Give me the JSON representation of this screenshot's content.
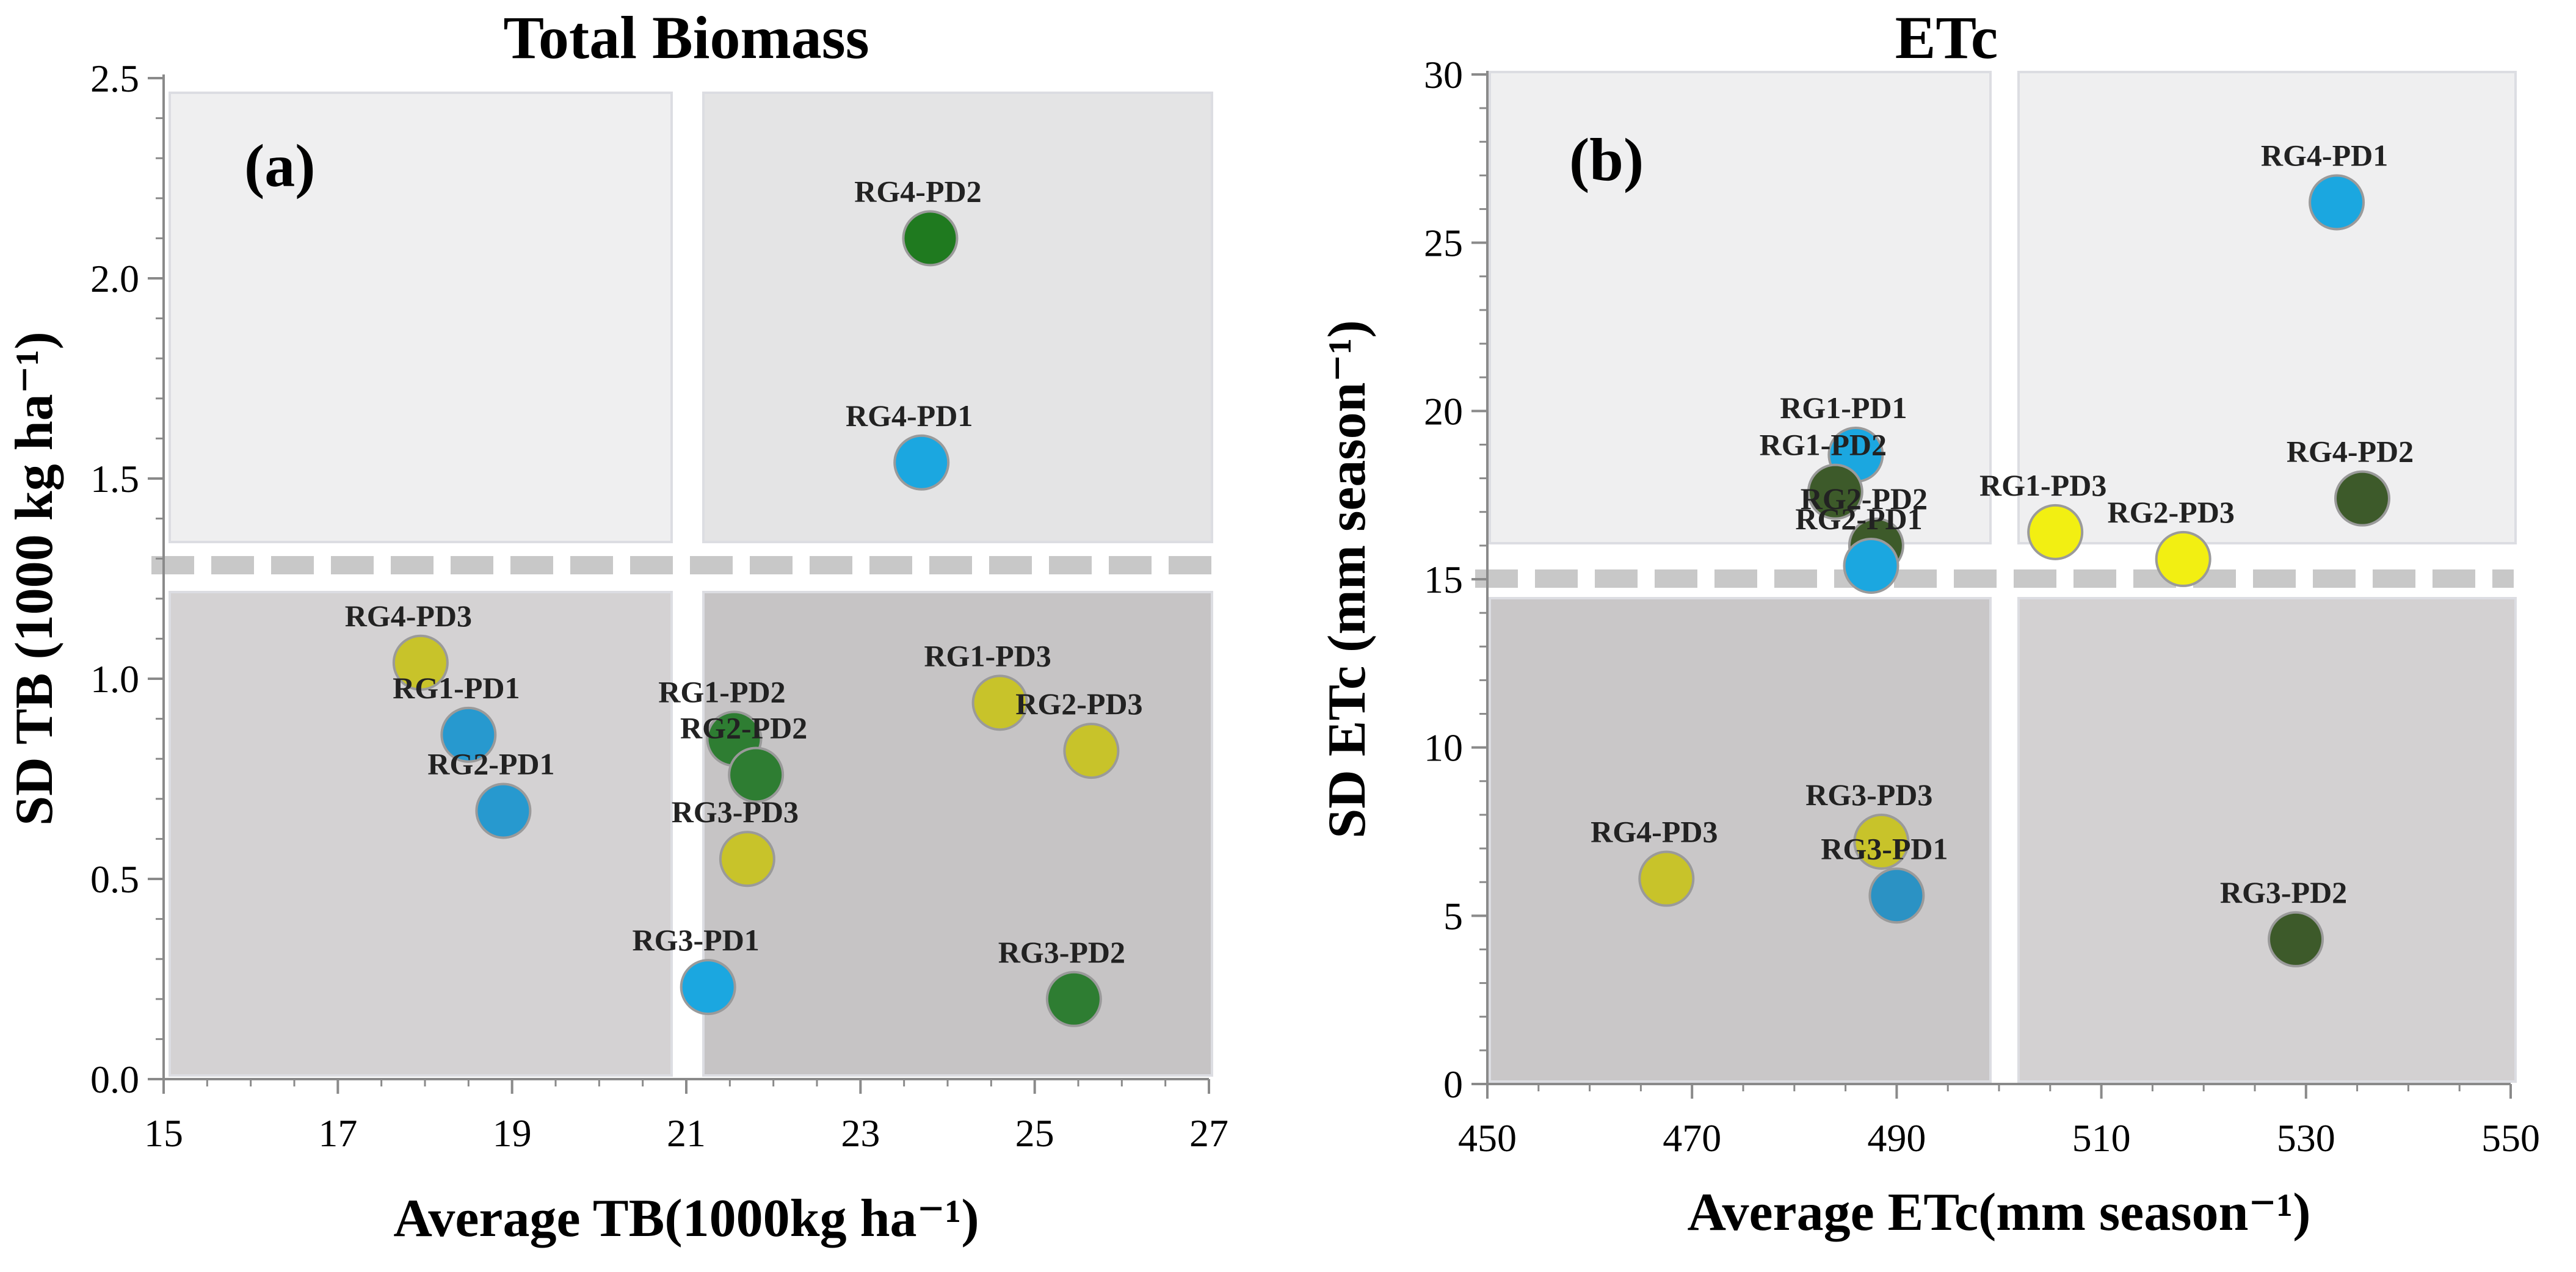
{
  "chart_data": [
    {
      "type": "scatter",
      "panel": "(a)",
      "title": "Total Biomass",
      "xlabel": "Average TB(1000kg ha⁻¹)",
      "ylabel": "SD TB (1000 kg ha⁻¹)",
      "xlim": [
        15,
        27
      ],
      "ylim": [
        0.0,
        2.5
      ],
      "xticks": [
        "15",
        "17",
        "19",
        "21",
        "23",
        "25",
        "27"
      ],
      "yticks": [
        "0.0",
        "0.5",
        "1.0",
        "1.5",
        "2.0",
        "2.5"
      ],
      "threshold_x": 21,
      "threshold_y": 1.28,
      "points": [
        {
          "label": "RG4-PD2",
          "x": 23.8,
          "y": 2.1,
          "color": "#1f7a1f"
        },
        {
          "label": "RG4-PD1",
          "x": 23.7,
          "y": 1.54,
          "color": "#1ba7e0"
        },
        {
          "label": "RG4-PD3",
          "x": 17.95,
          "y": 1.04,
          "color": "#c8c32a"
        },
        {
          "label": "RG1-PD1",
          "x": 18.5,
          "y": 0.86,
          "color": "#2799cf"
        },
        {
          "label": "RG2-PD1",
          "x": 18.9,
          "y": 0.67,
          "color": "#2799cf"
        },
        {
          "label": "RG1-PD2",
          "x": 21.55,
          "y": 0.85,
          "color": "#2e7d32"
        },
        {
          "label": "RG2-PD2",
          "x": 21.8,
          "y": 0.76,
          "color": "#2e7d32"
        },
        {
          "label": "RG3-PD3",
          "x": 21.7,
          "y": 0.55,
          "color": "#c8c32a"
        },
        {
          "label": "RG1-PD3",
          "x": 24.6,
          "y": 0.94,
          "color": "#c8c32a"
        },
        {
          "label": "RG2-PD3",
          "x": 25.65,
          "y": 0.82,
          "color": "#c8c32a"
        },
        {
          "label": "RG3-PD1",
          "x": 21.25,
          "y": 0.23,
          "color": "#1ba7e0"
        },
        {
          "label": "RG3-PD2",
          "x": 25.45,
          "y": 0.2,
          "color": "#2e7d32"
        }
      ]
    },
    {
      "type": "scatter",
      "panel": "(b)",
      "title": "ETc",
      "xlabel": "Average ETc(mm season⁻¹)",
      "ylabel": "SD ETc (mm season⁻¹)",
      "xlim": [
        450,
        550
      ],
      "ylim": [
        0,
        30
      ],
      "xticks": [
        "450",
        "470",
        "490",
        "510",
        "530",
        "550"
      ],
      "yticks": [
        "0",
        "5",
        "10",
        "15",
        "20",
        "25",
        "30"
      ],
      "threshold_x": 500,
      "threshold_y": 15,
      "points": [
        {
          "label": "RG4-PD1",
          "x": 533,
          "y": 26.2,
          "color": "#1ba7e0"
        },
        {
          "label": "RG1-PD1",
          "x": 486,
          "y": 18.7,
          "color": "#1ba7e0"
        },
        {
          "label": "RG1-PD2",
          "x": 484,
          "y": 17.6,
          "color": "#3d5a2a"
        },
        {
          "label": "RG2-PD2",
          "x": 488,
          "y": 16.0,
          "color": "#3d5a2a"
        },
        {
          "label": "RG2-PD1",
          "x": 487.5,
          "y": 15.4,
          "color": "#1ba7e0"
        },
        {
          "label": "RG1-PD3",
          "x": 505.5,
          "y": 16.4,
          "color": "#f2ef12"
        },
        {
          "label": "RG2-PD3",
          "x": 518,
          "y": 15.6,
          "color": "#f2ef12"
        },
        {
          "label": "RG4-PD2",
          "x": 535.5,
          "y": 17.4,
          "color": "#3d5a2a"
        },
        {
          "label": "RG4-PD3",
          "x": 467.5,
          "y": 6.1,
          "color": "#c8c32a"
        },
        {
          "label": "RG3-PD3",
          "x": 488.5,
          "y": 7.2,
          "color": "#c8c32a"
        },
        {
          "label": "RG3-PD1",
          "x": 490,
          "y": 5.6,
          "color": "#2b92c4"
        },
        {
          "label": "RG3-PD2",
          "x": 529,
          "y": 4.3,
          "color": "#3d5a2a"
        }
      ]
    }
  ]
}
